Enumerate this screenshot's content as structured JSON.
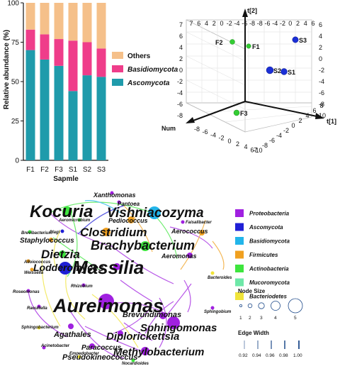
{
  "bar_chart": {
    "ylabel": "Relative abundance (%)",
    "xlabel": "Sapmle",
    "y_ticks": [
      "0",
      "25",
      "50",
      "75",
      "100"
    ],
    "legend": [
      {
        "label": "Others",
        "color": "#f5c08a",
        "italic": false
      },
      {
        "label": "Basidiomycota",
        "color": "#ef3d8a",
        "italic": true
      },
      {
        "label": "Ascomycota",
        "color": "#1f9bab",
        "italic": true
      }
    ]
  },
  "chart_data": {
    "type": "bar",
    "stacked": true,
    "categories": [
      "F1",
      "F2",
      "F3",
      "S1",
      "S2",
      "S3"
    ],
    "ylim": [
      0,
      100
    ],
    "series": [
      {
        "name": "Ascomycota",
        "values": [
          70,
          64,
          60,
          44,
          54,
          53
        ]
      },
      {
        "name": "Basidiomycota",
        "values": [
          13,
          16,
          17,
          32,
          21,
          18
        ]
      },
      {
        "name": "Others",
        "values": [
          17,
          20,
          23,
          24,
          25,
          29
        ]
      }
    ]
  },
  "pca_3d": {
    "axis_labels": {
      "t2": "t[2]",
      "t1": "t[1]",
      "num": "Num"
    },
    "back_top_ticks": [
      "7",
      "6",
      "4",
      "2",
      "0",
      "-2",
      "-4",
      "-6",
      "-8",
      "-8",
      "-6",
      "-4",
      "-2",
      "0",
      "2",
      "4",
      "6"
    ],
    "left_ticks": [
      "7",
      "6",
      "4",
      "2",
      "0",
      "-2",
      "-4",
      "-6",
      "-8"
    ],
    "right_ticks": [
      "6",
      "4",
      "2",
      "0",
      "-2",
      "-4",
      "-6",
      "-8",
      "10"
    ],
    "bottom_left_ticks": [
      "-8",
      "-6",
      "-4",
      "-2",
      "0",
      "2",
      "4",
      "67"
    ],
    "bottom_right_ticks": [
      "-10",
      "-8",
      "-6",
      "-4",
      "-2",
      "0",
      "2",
      "4",
      "6",
      "8"
    ],
    "points": [
      {
        "label": "F2",
        "group": "F",
        "color": "#33cc33"
      },
      {
        "label": "F1",
        "group": "F",
        "color": "#33cc33"
      },
      {
        "label": "S3",
        "group": "S",
        "color": "#1b2fd6"
      },
      {
        "label": "S2",
        "group": "S",
        "color": "#1b2fd6"
      },
      {
        "label": "S1",
        "group": "S",
        "color": "#1b2fd6"
      },
      {
        "label": "F3",
        "group": "F",
        "color": "#33cc33"
      }
    ]
  },
  "network": {
    "genera": [
      "Xanthomonas",
      "Pantoea",
      "Kocuria",
      "Vishniacozyma",
      "Pediococcus",
      "Aeromicrobium",
      "Faisalibacter",
      "Clostridium",
      "Aerococcus",
      "Brevibacterium",
      "Staphylococcus",
      "Brachybacterium",
      "Dietzia",
      "Aeromonas",
      "Lodderomyces",
      "Massilia",
      "Alloiococcus",
      "Weissella",
      "Rhizobium",
      "Bacteroides",
      "Roseomonas",
      "Raoultella",
      "Aureimonas",
      "Sphingobium",
      "Brevundimonas",
      "Sphingobacterium",
      "Agathales",
      "Diplorickettsia",
      "Sphingomonas",
      "Acinetobacter",
      "Paracoccus",
      "Empedobacter",
      "Methylobacterium",
      "Pseudokineococcus",
      "Nocardioides",
      "Plagi"
    ],
    "phylum_legend": [
      {
        "label": "Proteobacteria",
        "color": "#a020e0"
      },
      {
        "label": "Ascomycota",
        "color": "#1f1fd6"
      },
      {
        "label": "Basidiomycota",
        "color": "#22b5ea"
      },
      {
        "label": "Firmicutes",
        "color": "#f0a020"
      },
      {
        "label": "Actinobacteria",
        "color": "#3ee53e"
      },
      {
        "label": "Mucoromycota",
        "color": "#6ee8a8"
      },
      {
        "label": "Bacteriodetes",
        "color": "#f0e43a"
      }
    ],
    "node_size_title": "Node Size",
    "node_size_labels": [
      "1",
      "2",
      "3",
      "4",
      "5"
    ],
    "edge_width_title": "Edge Width",
    "edge_width_labels": [
      "0.92",
      "0.94",
      "0.96",
      "0.98",
      "1.00"
    ]
  }
}
